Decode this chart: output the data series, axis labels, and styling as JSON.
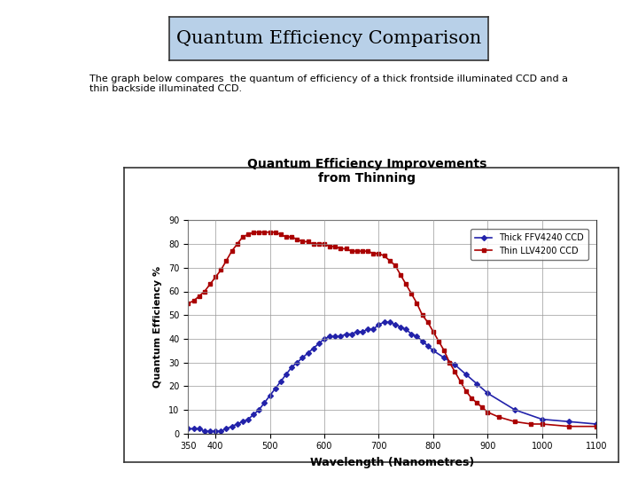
{
  "title": "Quantum Efficiency Comparison",
  "subtitle": "The graph below compares  the quantum of efficiency of a thick frontside illuminated CCD and a\nthin backside illuminated CCD.",
  "inner_title": "Quantum Efficiency Improvements\nfrom Thinning",
  "xlabel": "Wavelength (Nanometres)",
  "ylabel": "Quantum Efficiency %",
  "legend_thick": "Thick FFV4240 CCD",
  "legend_thin": "Thin LLV4200 CCD",
  "xlim": [
    350,
    1100
  ],
  "ylim": [
    0,
    90
  ],
  "xticks": [
    350,
    400,
    500,
    600,
    700,
    800,
    900,
    1000,
    1100
  ],
  "xtick_labels": [
    "350",
    "400",
    "500",
    "600",
    "700",
    "800",
    "900",
    "1000",
    "1100"
  ],
  "yticks": [
    0,
    10,
    20,
    30,
    40,
    50,
    60,
    70,
    80,
    90
  ],
  "thick_x": [
    350,
    360,
    370,
    380,
    390,
    400,
    410,
    420,
    430,
    440,
    450,
    460,
    470,
    480,
    490,
    500,
    510,
    520,
    530,
    540,
    550,
    560,
    570,
    580,
    590,
    600,
    610,
    620,
    630,
    640,
    650,
    660,
    670,
    680,
    690,
    700,
    710,
    720,
    730,
    740,
    750,
    760,
    770,
    780,
    790,
    800,
    820,
    840,
    860,
    880,
    900,
    950,
    1000,
    1050,
    1100
  ],
  "thick_y": [
    2,
    2,
    2,
    1,
    1,
    1,
    1,
    2,
    3,
    4,
    5,
    6,
    8,
    10,
    13,
    16,
    19,
    22,
    25,
    28,
    30,
    32,
    34,
    36,
    38,
    40,
    41,
    41,
    41,
    42,
    42,
    43,
    43,
    44,
    44,
    46,
    47,
    47,
    46,
    45,
    44,
    42,
    41,
    39,
    37,
    35,
    32,
    29,
    25,
    21,
    17,
    10,
    6,
    5,
    4
  ],
  "thin_x": [
    350,
    360,
    370,
    380,
    390,
    400,
    410,
    420,
    430,
    440,
    450,
    460,
    470,
    480,
    490,
    500,
    510,
    520,
    530,
    540,
    550,
    560,
    570,
    580,
    590,
    600,
    610,
    620,
    630,
    640,
    650,
    660,
    670,
    680,
    690,
    700,
    710,
    720,
    730,
    740,
    750,
    760,
    770,
    780,
    790,
    800,
    810,
    820,
    830,
    840,
    850,
    860,
    870,
    880,
    890,
    900,
    920,
    950,
    980,
    1000,
    1050,
    1100
  ],
  "thin_y": [
    55,
    56,
    58,
    60,
    63,
    66,
    69,
    73,
    77,
    80,
    83,
    84,
    85,
    85,
    85,
    85,
    85,
    84,
    83,
    83,
    82,
    81,
    81,
    80,
    80,
    80,
    79,
    79,
    78,
    78,
    77,
    77,
    77,
    77,
    76,
    76,
    75,
    73,
    71,
    67,
    63,
    59,
    55,
    50,
    47,
    43,
    39,
    35,
    30,
    26,
    22,
    18,
    15,
    13,
    11,
    9,
    7,
    5,
    4,
    4,
    3,
    3
  ],
  "bg_color": "#ffffff",
  "title_bg": "#b8d0e8",
  "thick_color": "#2222aa",
  "thin_color": "#aa0000",
  "plot_bg": "#ffffff",
  "grid_color": "#999999"
}
